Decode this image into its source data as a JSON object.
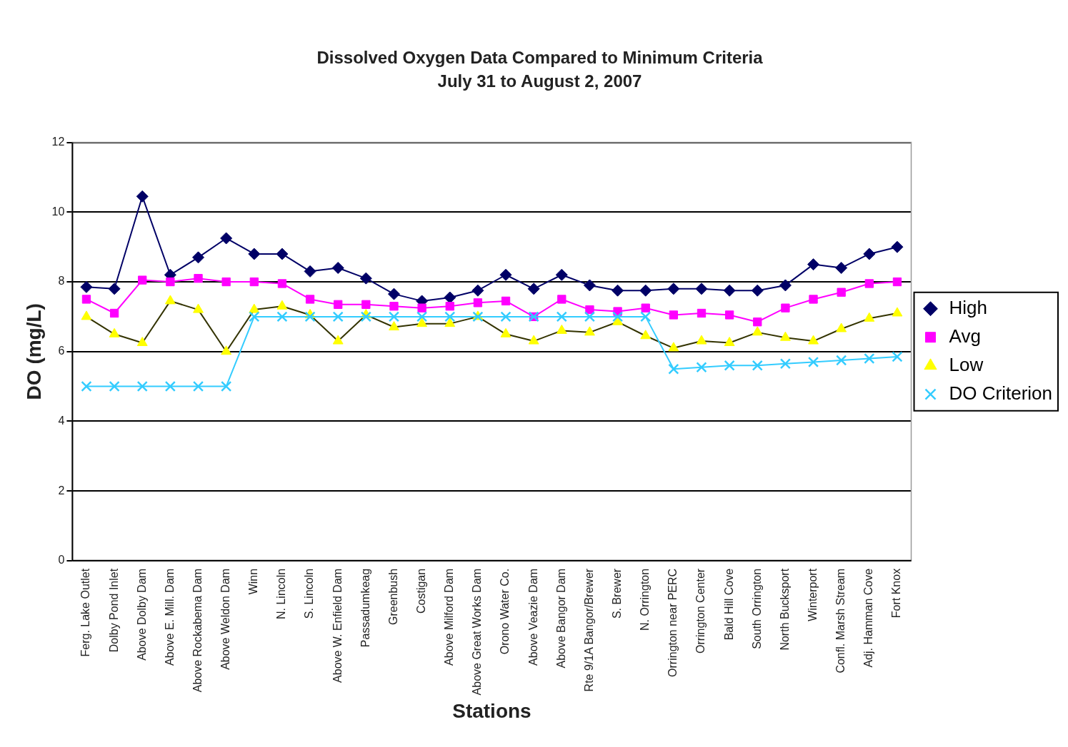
{
  "chart_data": {
    "type": "line",
    "title": "Dissolved Oxygen Data Compared to Minimum Criteria",
    "subtitle": "July 31 to August 2, 2007",
    "xlabel": "Stations",
    "ylabel": "DO (mg/L)",
    "categories": [
      "Ferg. Lake Outlet",
      "Dolby Pond Inlet",
      "Above Dolby Dam",
      "Above E. Mill. Dam",
      "Above Rockabema Dam",
      "Above Weldon Dam",
      "Winn",
      "N. Lincoln",
      "S. Lincoln",
      "Above W. Enfield Dam",
      "Passadumkeag",
      "Greenbush",
      "Costigan",
      "Above Milford Dam",
      "Above Great Works Dam",
      "Orono Water Co.",
      "Above Veazie Dam",
      "Above Bangor Dam",
      "Rte 9/1A Bangor/Brewer",
      "S. Brewer",
      "N. Orrington",
      "Orrington near PERC",
      "Orrington Center",
      "Bald Hill Cove",
      "South Orrington",
      "North Bucksport",
      "Winterport",
      "Confl. Marsh Stream",
      "Adj. Hamman Cove",
      "Fort Knox"
    ],
    "series": [
      {
        "name": "High",
        "color": "#000066",
        "marker": "diamond",
        "values": [
          7.85,
          7.8,
          10.45,
          8.2,
          8.7,
          9.25,
          8.8,
          8.8,
          8.3,
          8.4,
          8.1,
          7.65,
          7.45,
          7.55,
          7.75,
          8.2,
          7.8,
          8.2,
          7.9,
          7.75,
          7.75,
          7.8,
          7.8,
          7.75,
          7.75,
          7.9,
          8.5,
          8.4,
          8.8,
          9.0
        ]
      },
      {
        "name": "Avg",
        "color": "#ff00ff",
        "marker": "square",
        "values": [
          7.5,
          7.1,
          8.05,
          8.0,
          8.1,
          8.0,
          8.0,
          7.95,
          7.5,
          7.35,
          7.35,
          7.3,
          7.25,
          7.3,
          7.4,
          7.45,
          7.0,
          7.5,
          7.2,
          7.15,
          7.25,
          7.05,
          7.1,
          7.05,
          6.85,
          7.25,
          7.5,
          7.7,
          7.95,
          8.0
        ]
      },
      {
        "name": "Low",
        "color": "#ffff00",
        "marker": "triangle",
        "values": [
          7.0,
          6.5,
          6.25,
          7.45,
          7.2,
          6.0,
          7.2,
          7.3,
          7.05,
          6.3,
          7.05,
          6.7,
          6.8,
          6.8,
          7.0,
          6.5,
          6.3,
          6.6,
          6.55,
          6.85,
          6.45,
          6.1,
          6.3,
          6.25,
          6.55,
          6.4,
          6.3,
          6.65,
          6.95,
          7.1
        ]
      },
      {
        "name": "DO Criterion",
        "color": "#33ccff",
        "marker": "cross",
        "values": [
          5,
          5,
          5,
          5,
          5,
          5,
          7,
          7,
          7,
          7,
          7,
          7,
          7,
          7,
          7,
          7,
          7,
          7,
          7,
          7,
          7,
          5.5,
          5.55,
          5.6,
          5.6,
          5.65,
          5.7,
          5.75,
          5.8,
          5.85
        ]
      }
    ],
    "ylim": [
      0,
      12
    ],
    "yticks": [
      0,
      2,
      4,
      6,
      8,
      10,
      12
    ],
    "grid": "y",
    "legend": "right",
    "line_style": "solid"
  }
}
